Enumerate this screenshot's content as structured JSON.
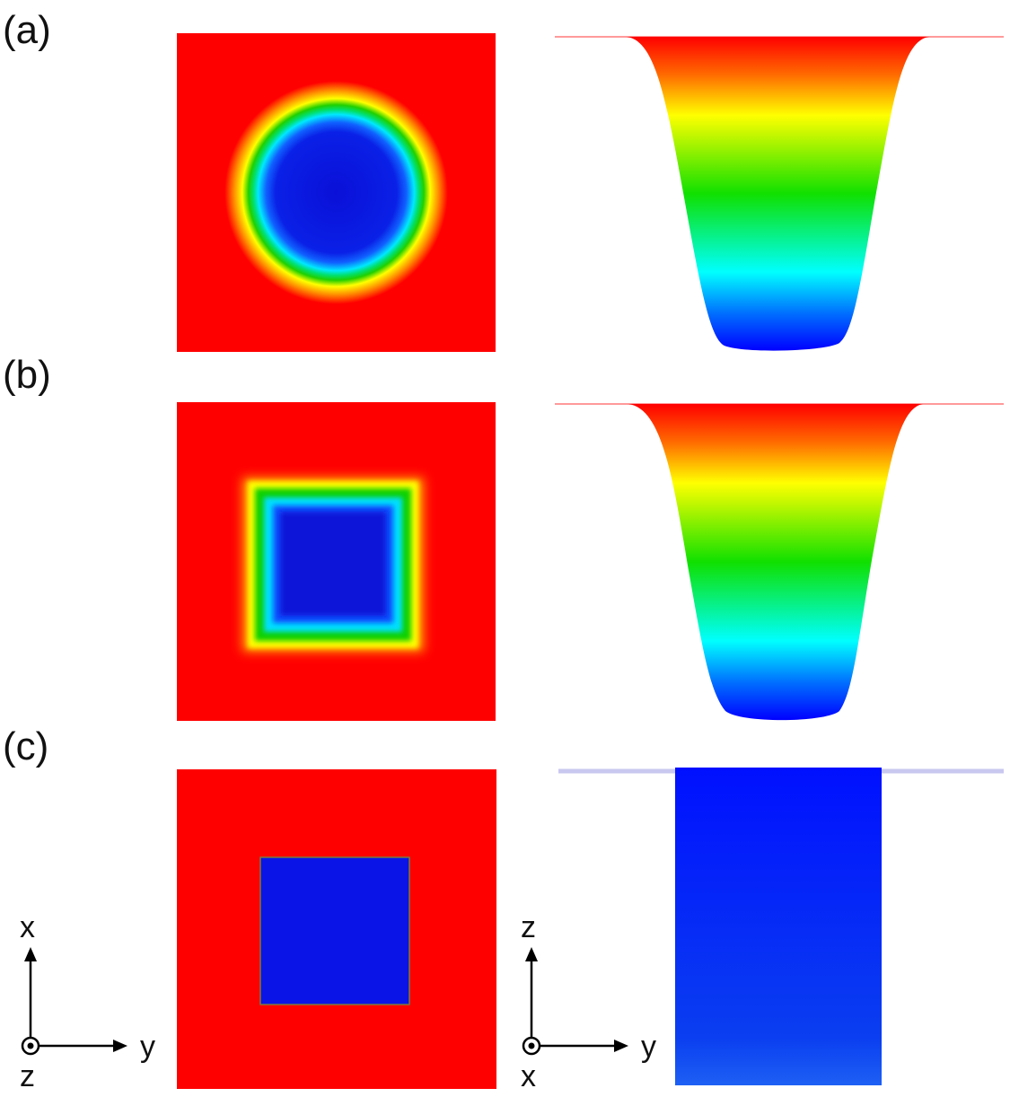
{
  "panels": [
    {
      "label": "(a)",
      "shape": "circle",
      "profile": "smooth"
    },
    {
      "label": "(b)",
      "shape": "square",
      "profile": "smooth"
    },
    {
      "label": "(c)",
      "shape": "square",
      "profile": "sharp"
    }
  ],
  "axes": {
    "top_view": {
      "vertical": "x",
      "horizontal": "y",
      "out_of_plane": "z"
    },
    "side_view": {
      "vertical": "z",
      "horizontal": "y",
      "out_of_plane": "x"
    }
  },
  "colors": {
    "background_field": "#ff0000",
    "core": "#0a14e6",
    "gradient": [
      "#ff0000",
      "#ff9900",
      "#ffff00",
      "#00e000",
      "#00ffff",
      "#0070ff",
      "#0000ff"
    ]
  }
}
